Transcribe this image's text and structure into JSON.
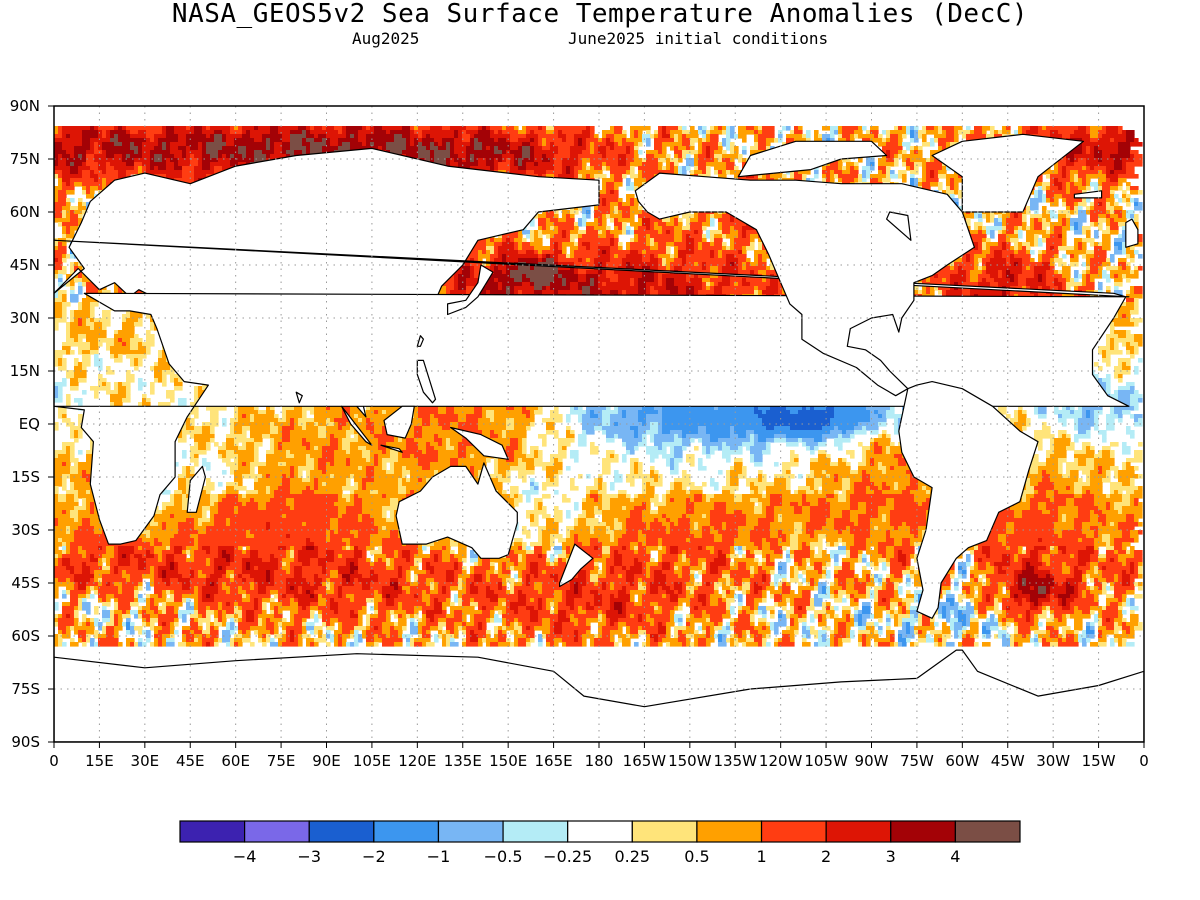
{
  "title": "NASA_GEOS5v2 Sea Surface Temperature Anomalies (DecC)",
  "subtitle_left": "Aug2025",
  "subtitle_right": "June2025 initial conditions",
  "x_tick_labels": [
    "0",
    "15E",
    "30E",
    "45E",
    "60E",
    "75E",
    "90E",
    "105E",
    "120E",
    "135E",
    "150E",
    "165E",
    "180",
    "165W",
    "150W",
    "135W",
    "120W",
    "105W",
    "90W",
    "75W",
    "60W",
    "45W",
    "30W",
    "15W",
    "0"
  ],
  "y_tick_labels": [
    "90N",
    "75N",
    "60N",
    "45N",
    "30N",
    "15N",
    "EQ",
    "15S",
    "30S",
    "45S",
    "60S",
    "75S",
    "90S"
  ],
  "colors": {
    "land": "#ffffff",
    "coast": "#000000",
    "grid": "#b0b0b0"
  },
  "colorbar": {
    "colors": [
      "#3c22b0",
      "#7a68e8",
      "#1a5fd0",
      "#3c96ef",
      "#78b6f4",
      "#b4ecf6",
      "#ffffff",
      "#ffe47a",
      "#ffa000",
      "#ff3d12",
      "#dd1505",
      "#a30206",
      "#7b4e45"
    ],
    "labels": [
      "−4",
      "−3",
      "−2",
      "−1",
      "−0.5",
      "−0.25",
      "0.25",
      "0.5",
      "1",
      "2",
      "3",
      "4"
    ]
  },
  "map_data": {
    "type": "filled-contour",
    "variable": "Sea Surface Temperature Anomalies",
    "units": "DecC",
    "lon_range": [
      0,
      360
    ],
    "lat_range": [
      -90,
      90
    ],
    "features": [
      {
        "region": "North Pacific 35-45N",
        "anomaly": "3 to 4"
      },
      {
        "region": "Equatorial central-east Pacific",
        "anomaly": "-1 to -3"
      },
      {
        "region": "Western Pacific warm pool",
        "anomaly": "0.5 to 1"
      },
      {
        "region": "Southern Ocean 40-55S",
        "anomaly": "mixed 1 to 3"
      },
      {
        "region": "Arctic Eurasian margin",
        "anomaly": "1 to 4"
      },
      {
        "region": "Tropical east Atlantic",
        "anomaly": "-0.5 to -1"
      },
      {
        "region": "Northwest Atlantic",
        "anomaly": "1 to 2"
      }
    ]
  }
}
